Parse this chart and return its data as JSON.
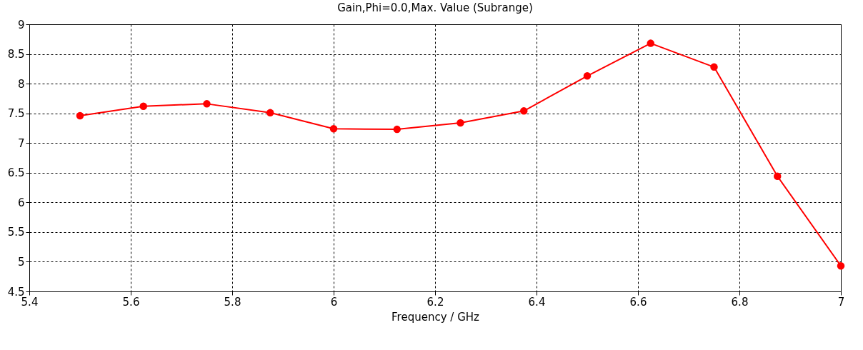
{
  "chart_data": {
    "type": "line",
    "title": "Gain,Phi=0.0,Max. Value (Subrange)",
    "xlabel": "Frequency / GHz",
    "x": [
      5.5,
      5.625,
      5.75,
      5.875,
      6.0,
      6.125,
      6.25,
      6.375,
      6.5,
      6.625,
      6.75,
      6.875,
      7.0
    ],
    "series": [
      {
        "color": "#ff0000",
        "values": [
          7.46,
          7.62,
          7.66,
          7.51,
          7.24,
          7.23,
          7.34,
          7.54,
          8.13,
          8.68,
          8.28,
          6.44,
          4.93
        ]
      }
    ],
    "xlim": [
      5.4,
      7.0
    ],
    "xticks": [
      5.4,
      5.6,
      5.8,
      6,
      6.2,
      6.4,
      6.6,
      6.8,
      7
    ],
    "ylim": [
      4.5,
      9
    ],
    "yticks": [
      4.5,
      5,
      5.5,
      6,
      6.5,
      7,
      7.5,
      8,
      8.5,
      9
    ],
    "grid": true,
    "marker": "circle",
    "line_style": "solid",
    "legend": false
  }
}
